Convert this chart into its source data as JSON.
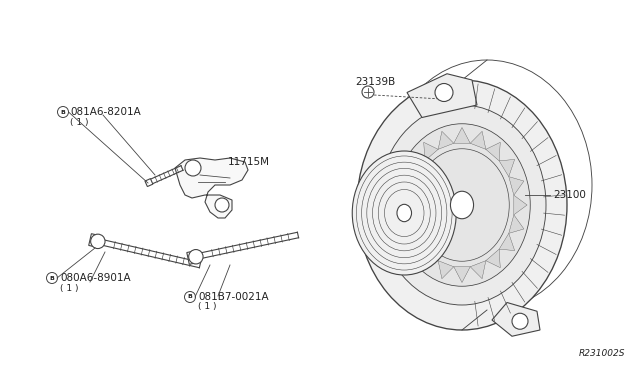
{
  "bg_color": "#ffffff",
  "line_color": "#444444",
  "text_color": "#222222",
  "diagram_id": "R231002S",
  "labels": {
    "part1": "081A6-8201A",
    "part1_qty": "（ 1 ）",
    "part2": "11715M",
    "part3": "080A6-8901A",
    "part3_qty": "（ 1 ）",
    "part4": "081B7-0021A",
    "part4_qty": "（ 1 ）",
    "part5": "23139B",
    "part6": "23100"
  }
}
